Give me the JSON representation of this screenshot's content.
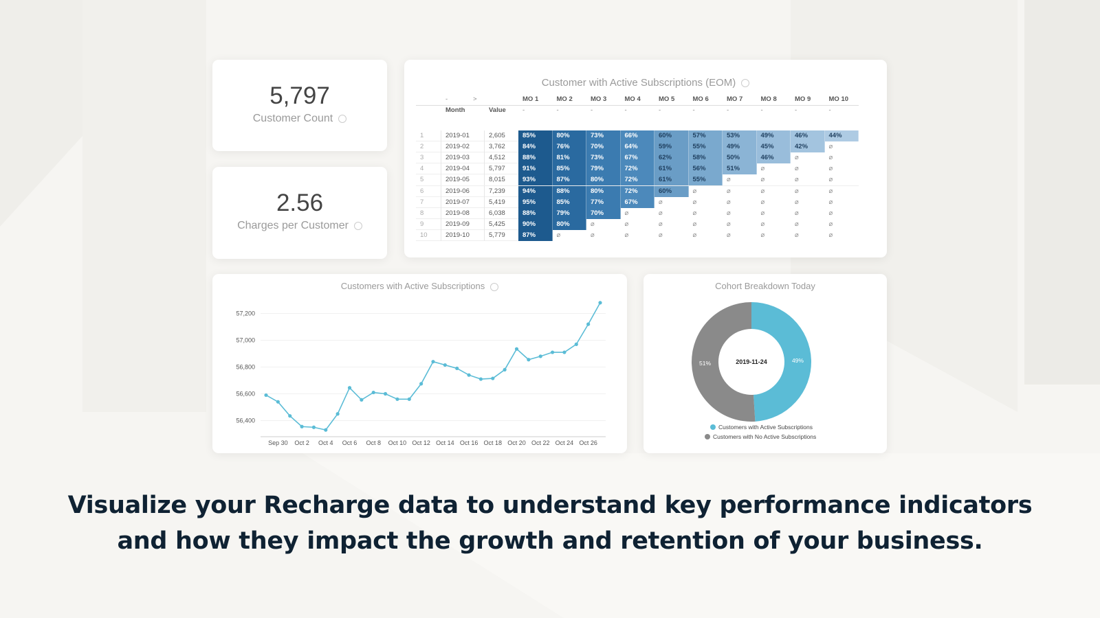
{
  "kpis": [
    {
      "value": "5,797",
      "label": "Customer Count"
    },
    {
      "value": "2.56",
      "label": "Charges per Customer"
    }
  ],
  "cohort_table": {
    "title": "Customer with Active Subscriptions (EOM)",
    "top_row": [
      "-",
      ">"
    ],
    "columns": [
      "MO 1",
      "MO 2",
      "MO 3",
      "MO 4",
      "MO 5",
      "MO 6",
      "MO 7",
      "MO 8",
      "MO 9",
      "MO 10"
    ],
    "subheader": [
      "Month",
      "Value"
    ],
    "column_placeholders": [
      "-",
      "-",
      "-",
      "-",
      "-",
      "-",
      "-",
      "-",
      "-",
      "-"
    ],
    "rows": [
      {
        "index": "1",
        "month": "2019-01",
        "value": "2,605",
        "cells": [
          "85%",
          "80%",
          "73%",
          "66%",
          "60%",
          "57%",
          "53%",
          "49%",
          "46%",
          "44%"
        ]
      },
      {
        "index": "2",
        "month": "2019-02",
        "value": "3,762",
        "cells": [
          "84%",
          "76%",
          "70%",
          "64%",
          "59%",
          "55%",
          "49%",
          "45%",
          "42%",
          "⌀"
        ]
      },
      {
        "index": "3",
        "month": "2019-03",
        "value": "4,512",
        "cells": [
          "88%",
          "81%",
          "73%",
          "67%",
          "62%",
          "58%",
          "50%",
          "46%",
          "⌀",
          "⌀"
        ]
      },
      {
        "index": "4",
        "month": "2019-04",
        "value": "5,797",
        "cells": [
          "91%",
          "85%",
          "79%",
          "72%",
          "61%",
          "56%",
          "51%",
          "⌀",
          "⌀",
          "⌀"
        ]
      },
      {
        "index": "5",
        "month": "2019-05",
        "value": "8,015",
        "cells": [
          "93%",
          "87%",
          "80%",
          "72%",
          "61%",
          "55%",
          "⌀",
          "⌀",
          "⌀",
          "⌀"
        ]
      },
      {
        "index": "6",
        "month": "2019-06",
        "value": "7,239",
        "cells": [
          "94%",
          "88%",
          "80%",
          "72%",
          "60%",
          "⌀",
          "⌀",
          "⌀",
          "⌀",
          "⌀"
        ]
      },
      {
        "index": "7",
        "month": "2019-07",
        "value": "5,419",
        "cells": [
          "95%",
          "85%",
          "77%",
          "67%",
          "⌀",
          "⌀",
          "⌀",
          "⌀",
          "⌀",
          "⌀"
        ]
      },
      {
        "index": "8",
        "month": "2019-08",
        "value": "6,038",
        "cells": [
          "88%",
          "79%",
          "70%",
          "⌀",
          "⌀",
          "⌀",
          "⌀",
          "⌀",
          "⌀",
          "⌀"
        ]
      },
      {
        "index": "9",
        "month": "2019-09",
        "value": "5,425",
        "cells": [
          "90%",
          "80%",
          "⌀",
          "⌀",
          "⌀",
          "⌀",
          "⌀",
          "⌀",
          "⌀",
          "⌀"
        ]
      },
      {
        "index": "10",
        "month": "2019-10",
        "value": "5,779",
        "cells": [
          "87%",
          "⌀",
          "⌀",
          "⌀",
          "⌀",
          "⌀",
          "⌀",
          "⌀",
          "⌀",
          "⌀"
        ]
      }
    ]
  },
  "line_chart": {
    "type": "line",
    "title": "Customers with Active Subscriptions",
    "categories": [
      null,
      "Sep 30",
      null,
      "Oct 2",
      null,
      "Oct 4",
      null,
      "Oct 6",
      null,
      "Oct 8",
      null,
      "Oct 10",
      null,
      "Oct 12",
      null,
      "Oct 14",
      null,
      "Oct 16",
      null,
      "Oct 18",
      null,
      "Oct 20",
      null,
      "Oct 22",
      null,
      "Oct 24",
      null,
      "Oct 26",
      null
    ],
    "values": [
      56590,
      56540,
      56435,
      56355,
      56350,
      56330,
      56450,
      56645,
      56555,
      56610,
      56600,
      56560,
      56560,
      56675,
      56840,
      56815,
      56790,
      56740,
      56710,
      56715,
      56780,
      56935,
      56855,
      56880,
      56910,
      56910,
      56970,
      57120,
      57280
    ],
    "color": "#5bbcd6",
    "ylim": [
      56300,
      57300
    ],
    "yticks": [
      {
        "value": 56400,
        "label": "56,400"
      },
      {
        "value": 56600,
        "label": "56,600"
      },
      {
        "value": 56800,
        "label": "56,800"
      },
      {
        "value": 57000,
        "label": "57,000"
      },
      {
        "value": 57200,
        "label": "57,200"
      }
    ],
    "grid": true
  },
  "donut_chart": {
    "type": "pie",
    "title": "Cohort Breakdown Today",
    "center_label": "2019-11-24",
    "categories": [
      "Customers with Active Subscriptions",
      "Customers with No Active Subscriptions"
    ],
    "values": [
      49,
      51
    ],
    "value_labels": [
      "49%",
      "51%"
    ],
    "colors": [
      "#5bbcd6",
      "#8a8a8a"
    ],
    "legend": "bottom"
  },
  "caption": "Visualize your Recharge data to understand key performance indicators and how they impact the growth and retention of your business."
}
